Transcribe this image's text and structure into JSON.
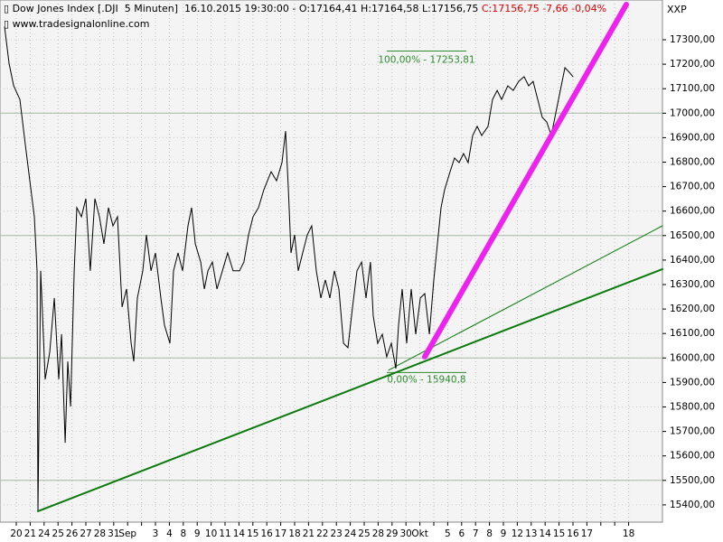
{
  "header": {
    "title": "Dow Jones Index [.DJI  5 Minuten]",
    "quote": "16.10.2015 19:30:00 - O:17164,41 H:17164,58 L:17156,75",
    "change": "C:17156,75 -7,66 -0,04%",
    "source": "www.tradesignalonline.com",
    "corner": "XXP"
  },
  "chart_data": {
    "type": "line",
    "categories": [
      "20",
      "21",
      "24",
      "25",
      "26",
      "27",
      "28",
      "31",
      "Sep",
      null,
      "3",
      "4",
      "8",
      "9",
      "10",
      "11",
      "14",
      "15",
      "16",
      "17",
      "18",
      "21",
      "22",
      "23",
      "24",
      "25",
      "28",
      "29",
      "30",
      "Okt",
      null,
      "5",
      "6",
      "7",
      "8",
      "9",
      "12",
      "13",
      "14",
      "15",
      "16",
      "17",
      null,
      null,
      "18"
    ],
    "xlim": [
      -1.17,
      46.43
    ],
    "ylim": [
      15329.5,
      17462.4
    ],
    "yticks": [
      {
        "value": 15400,
        "label": "15400,00"
      },
      {
        "value": 15500,
        "label": "15500,00"
      },
      {
        "value": 15600,
        "label": "15600,00"
      },
      {
        "value": 15700,
        "label": "15700,00"
      },
      {
        "value": 15800,
        "label": "15800,00"
      },
      {
        "value": 15900,
        "label": "15900,00"
      },
      {
        "value": 16000,
        "label": "16000,00"
      },
      {
        "value": 16100,
        "label": "16100,00"
      },
      {
        "value": 16200,
        "label": "16200,00"
      },
      {
        "value": 16300,
        "label": "16300,00"
      },
      {
        "value": 16400,
        "label": "16400,00"
      },
      {
        "value": 16500,
        "label": "16500,00"
      },
      {
        "value": 16600,
        "label": "16600,00"
      },
      {
        "value": 16700,
        "label": "16700,00"
      },
      {
        "value": 16800,
        "label": "16800,00"
      },
      {
        "value": 16900,
        "label": "16900,00"
      },
      {
        "value": 17000,
        "label": "17000,00"
      },
      {
        "value": 17100,
        "label": "17100,00"
      },
      {
        "value": 17200,
        "label": "17200,00"
      },
      {
        "value": 17300,
        "label": "17300,00"
      }
    ],
    "major_grid": [
      15500,
      16000,
      16500,
      17000
    ],
    "grid": true,
    "series": [
      {
        "color": "#000000",
        "x": [
          -0.84,
          -0.52,
          -0.19,
          0.26,
          0.65,
          0.97,
          1.3,
          1.49,
          1.56,
          1.75,
          2.08,
          2.4,
          2.73,
          3.05,
          3.25,
          3.51,
          3.7,
          3.9,
          4.16,
          4.35,
          4.68,
          5.0,
          5.32,
          5.65,
          5.97,
          6.3,
          6.62,
          6.95,
          7.27,
          7.6,
          7.92,
          8.25,
          8.44,
          8.7,
          9.09,
          9.35,
          9.68,
          10.0,
          10.39,
          10.65,
          11.04,
          11.3,
          11.62,
          11.95,
          12.34,
          12.6,
          12.86,
          13.25,
          13.51,
          13.77,
          14.09,
          14.42,
          14.81,
          15.19,
          15.58,
          16.04,
          16.36,
          16.69,
          17.01,
          17.4,
          17.79,
          18.31,
          18.7,
          19.09,
          19.35,
          19.55,
          19.74,
          20.0,
          20.26,
          20.58,
          20.91,
          21.23,
          21.56,
          21.88,
          22.21,
          22.53,
          22.86,
          23.18,
          23.51,
          23.83,
          24.16,
          24.48,
          24.81,
          25.13,
          25.45,
          25.65,
          25.97,
          26.3,
          26.62,
          26.95,
          27.27,
          27.47,
          27.73,
          28.05,
          28.38,
          28.7,
          29.03,
          29.35,
          29.68,
          30.0,
          30.26,
          30.52,
          30.78,
          31.17,
          31.49,
          31.82,
          32.14,
          32.47,
          32.79,
          33.12,
          33.44,
          33.9,
          34.22,
          34.55,
          34.87,
          35.32,
          35.71,
          36.1,
          36.49,
          36.82,
          37.14,
          37.47,
          37.79,
          38.12,
          38.44,
          38.77,
          39.09,
          39.42,
          39.74,
          40.0
        ],
        "values": [
          17352,
          17204,
          17112,
          17056,
          16872,
          16724,
          16577,
          16356,
          15377,
          16356,
          15913,
          16023,
          16245,
          15913,
          16097,
          15654,
          15986,
          15802,
          16356,
          16614,
          16577,
          16651,
          16356,
          16651,
          16577,
          16466,
          16614,
          16540,
          16577,
          16208,
          16282,
          16060,
          15986,
          16245,
          16356,
          16503,
          16356,
          16429,
          16245,
          16134,
          16060,
          16356,
          16429,
          16356,
          16540,
          16614,
          16466,
          16392,
          16282,
          16356,
          16392,
          16282,
          16356,
          16429,
          16356,
          16356,
          16392,
          16503,
          16577,
          16614,
          16688,
          16761,
          16724,
          16798,
          16927,
          16688,
          16429,
          16503,
          16356,
          16429,
          16503,
          16540,
          16356,
          16245,
          16319,
          16245,
          16356,
          16282,
          16060,
          16042,
          16208,
          16356,
          16392,
          16245,
          16392,
          16171,
          16060,
          16097,
          16005,
          16060,
          15957,
          16134,
          16282,
          16060,
          16282,
          16097,
          16245,
          16263,
          16097,
          16319,
          16466,
          16614,
          16688,
          16761,
          16817,
          16798,
          16835,
          16798,
          16909,
          16946,
          16909,
          16946,
          17056,
          17093,
          17056,
          17112,
          17093,
          17130,
          17149,
          17112,
          17130,
          17056,
          16983,
          16964,
          16909,
          17001,
          17093,
          17186,
          17167,
          17149
        ]
      }
    ],
    "trendlines": [
      {
        "color": "#0a7a0a",
        "width": 2,
        "x": [
          1.56,
          46.43
        ],
        "values": [
          15374,
          16363
        ]
      },
      {
        "color": "#0a7a0a",
        "width": 1,
        "x": [
          26.75,
          46.43
        ],
        "values": [
          15950,
          16540
        ]
      },
      {
        "color": "#ee22ee",
        "width": 6,
        "x": [
          29.35,
          43.83
        ],
        "values": [
          16005,
          17444
        ]
      }
    ],
    "levels": [
      {
        "value": 17253.81,
        "label": "100,00% - 17253,81",
        "x": [
          26.62,
          32.34
        ],
        "color": "#2e8b2e"
      },
      {
        "value": 15940.8,
        "label": "0,00% - 15940,8",
        "x": [
          26.62,
          32.34
        ],
        "color": "#2e8b2e"
      }
    ]
  }
}
